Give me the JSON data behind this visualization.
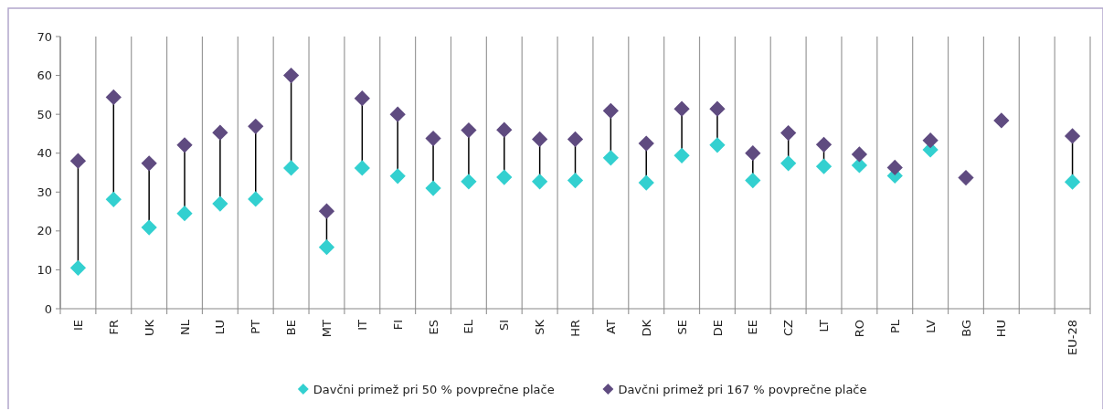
{
  "chart_data": {
    "type": "scatter",
    "categories": [
      "IE",
      "FR",
      "UK",
      "NL",
      "LU",
      "PT",
      "BE",
      "MT",
      "IT",
      "FI",
      "ES",
      "EL",
      "SI",
      "SK",
      "HR",
      "AT",
      "DK",
      "SE",
      "DE",
      "EE",
      "CZ",
      "LT",
      "RO",
      "PL",
      "LV",
      "BG",
      "HU",
      null,
      "EU-28"
    ],
    "series": [
      {
        "name": "Davčni primež pri 50 % povprečne plače",
        "color": "#33d0d0",
        "values": [
          10.5,
          28.1,
          20.9,
          24.5,
          27.0,
          28.2,
          36.2,
          15.8,
          36.2,
          34.1,
          31.0,
          32.7,
          33.8,
          32.7,
          33.0,
          38.8,
          32.4,
          39.4,
          42.1,
          33.0,
          37.4,
          36.6,
          36.9,
          34.2,
          40.9,
          null,
          null,
          null,
          32.6
        ]
      },
      {
        "name": "Davčni primež pri 167 % povprečne plače",
        "color": "#5f4b80",
        "values": [
          38.0,
          54.4,
          37.4,
          42.1,
          45.3,
          46.9,
          60.0,
          25.1,
          54.1,
          50.0,
          43.8,
          45.9,
          46.0,
          43.6,
          43.6,
          50.9,
          42.5,
          51.4,
          51.4,
          40.0,
          45.2,
          42.2,
          39.7,
          36.3,
          43.3,
          33.7,
          48.4,
          null,
          44.4
        ]
      }
    ],
    "ylim": [
      0,
      70
    ],
    "yticks": [
      0,
      10,
      20,
      30,
      40,
      50,
      60,
      70
    ],
    "grid": "x",
    "legend": "bottom",
    "marker": "diamond"
  }
}
